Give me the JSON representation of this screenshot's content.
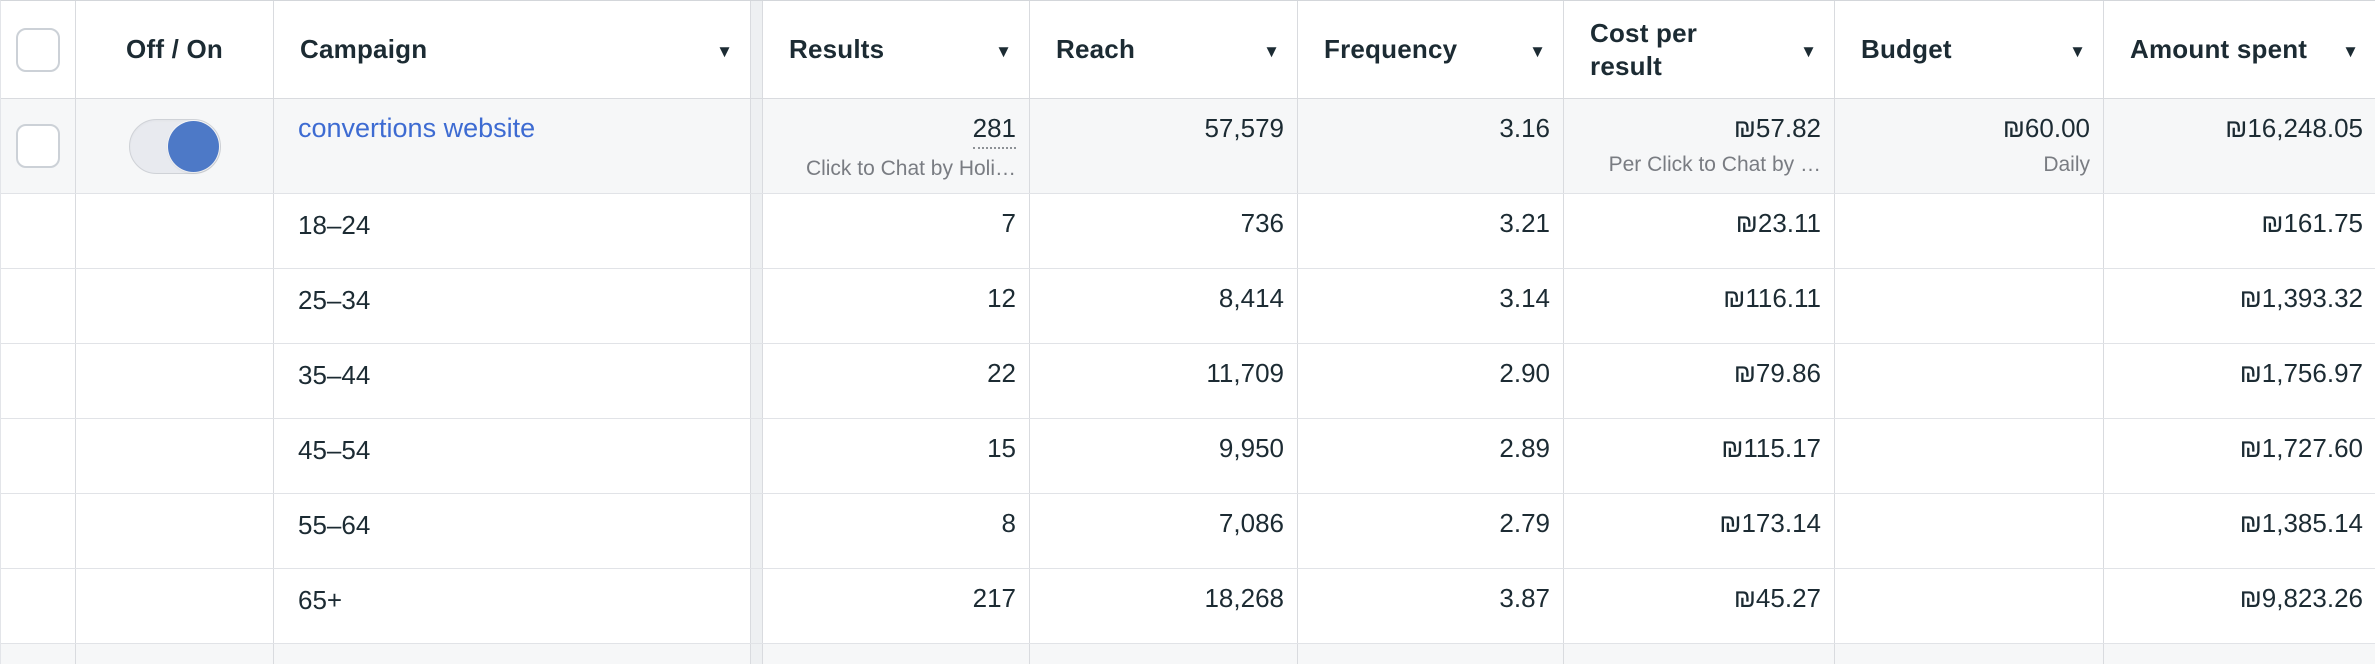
{
  "header": {
    "off_on_label": "Off / On",
    "campaign_label": "Campaign",
    "results_label": "Results",
    "reach_label": "Reach",
    "frequency_label": "Frequency",
    "cost_per_result_label": "Cost per result",
    "budget_label": "Budget",
    "amount_spent_label": "Amount spent"
  },
  "campaign_row": {
    "name": "convertions website",
    "toggle_state": "on",
    "results": "281",
    "results_type": "Click to Chat by Holi…",
    "reach": "57,579",
    "frequency": "3.16",
    "cost_per_result": "₪57.82",
    "cost_per_result_type": "Per Click to Chat by …",
    "budget": "₪60.00",
    "budget_type": "Daily",
    "amount_spent": "₪16,248.05"
  },
  "breakdown_rows": [
    {
      "label": "18–24",
      "results": "7",
      "reach": "736",
      "frequency": "3.21",
      "cost_per_result": "₪23.11",
      "budget": "",
      "amount_spent": "₪161.75"
    },
    {
      "label": "25–34",
      "results": "12",
      "reach": "8,414",
      "frequency": "3.14",
      "cost_per_result": "₪116.11",
      "budget": "",
      "amount_spent": "₪1,393.32"
    },
    {
      "label": "35–44",
      "results": "22",
      "reach": "11,709",
      "frequency": "2.90",
      "cost_per_result": "₪79.86",
      "budget": "",
      "amount_spent": "₪1,756.97"
    },
    {
      "label": "45–54",
      "results": "15",
      "reach": "9,950",
      "frequency": "2.89",
      "cost_per_result": "₪115.17",
      "budget": "",
      "amount_spent": "₪1,727.60"
    },
    {
      "label": "55–64",
      "results": "8",
      "reach": "7,086",
      "frequency": "2.79",
      "cost_per_result": "₪173.14",
      "budget": "",
      "amount_spent": "₪1,385.14"
    },
    {
      "label": "65+",
      "results": "217",
      "reach": "18,268",
      "frequency": "3.87",
      "cost_per_result": "₪45.27",
      "budget": "",
      "amount_spent": "₪9,823.26"
    }
  ],
  "icons": {
    "sort_arrow": "▼"
  },
  "colors": {
    "link_blue": "#3d6bd2",
    "toggle_knob_blue": "#4d79c7",
    "text_dark": "#1c2b33",
    "text_muted": "#797c82",
    "row_highlight": "#f6f7f8"
  }
}
